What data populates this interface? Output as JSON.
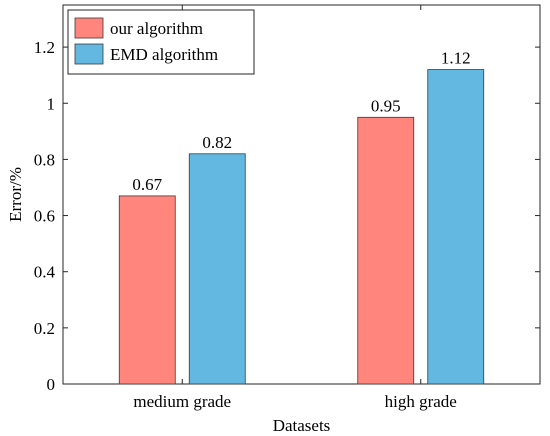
{
  "chart_data": {
    "type": "bar",
    "title": "",
    "xlabel": "Datasets",
    "ylabel": "Error/%",
    "categories": [
      "medium grade",
      "high grade"
    ],
    "series": [
      {
        "name": "our algorithm",
        "values": [
          0.67,
          0.95
        ],
        "labels": [
          "0.67",
          "0.95"
        ],
        "color": "#FF857D"
      },
      {
        "name": "EMD algorithm",
        "values": [
          0.82,
          1.12
        ],
        "labels": [
          "0.82",
          "1.12"
        ],
        "color": "#62B8E0"
      }
    ],
    "ylim": [
      0,
      1.35
    ],
    "yticks": [
      0,
      0.2,
      0.4,
      0.6,
      0.8,
      1,
      1.2
    ],
    "ytick_labels": [
      "0",
      "0.2",
      "0.4",
      "0.6",
      "0.8",
      "1",
      "1.2"
    ],
    "grid": false,
    "legend_position": "top-left"
  }
}
